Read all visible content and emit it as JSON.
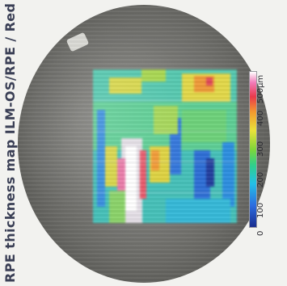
{
  "title": "RPE thickness map ILM-OS/RPE / Red",
  "scale": {
    "labels": [
      "0",
      "100",
      "200",
      "300",
      "400",
      "500µm"
    ],
    "colors": [
      "#1a2d8f",
      "#2d6de0",
      "#23c0e6",
      "#30d08a",
      "#7fd63a",
      "#e9e33a",
      "#f39a2e",
      "#e83a4b",
      "#f27ab8",
      "#ffffff"
    ]
  }
}
